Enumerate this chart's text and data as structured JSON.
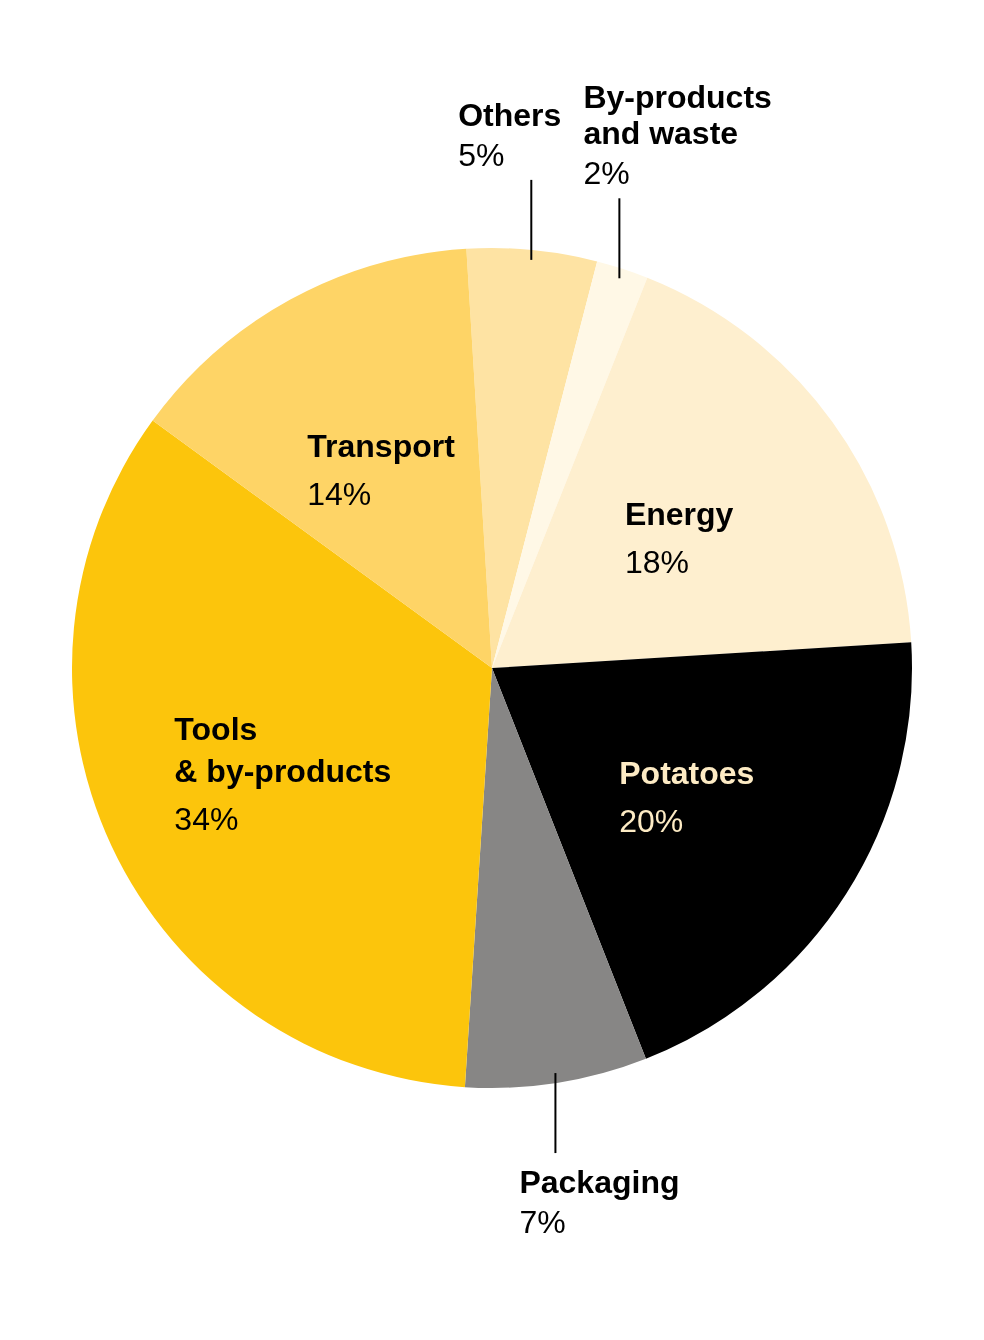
{
  "chart_data": {
    "type": "pie",
    "categories": [
      "Others",
      "By-products\nand waste",
      "Energy",
      "Potatoes",
      "Packaging",
      "Tools\n& by-products",
      "Transport"
    ],
    "values": [
      5,
      2,
      18,
      20,
      7,
      34,
      14
    ],
    "colors": [
      "#fee3a3",
      "#fff8e6",
      "#feefcf",
      "#000000",
      "#878685",
      "#fcc50c",
      "#fed466"
    ],
    "value_labels": [
      "5%",
      "2%",
      "18%",
      "20%",
      "7%",
      "34%",
      "14%"
    ],
    "legend": false
  }
}
